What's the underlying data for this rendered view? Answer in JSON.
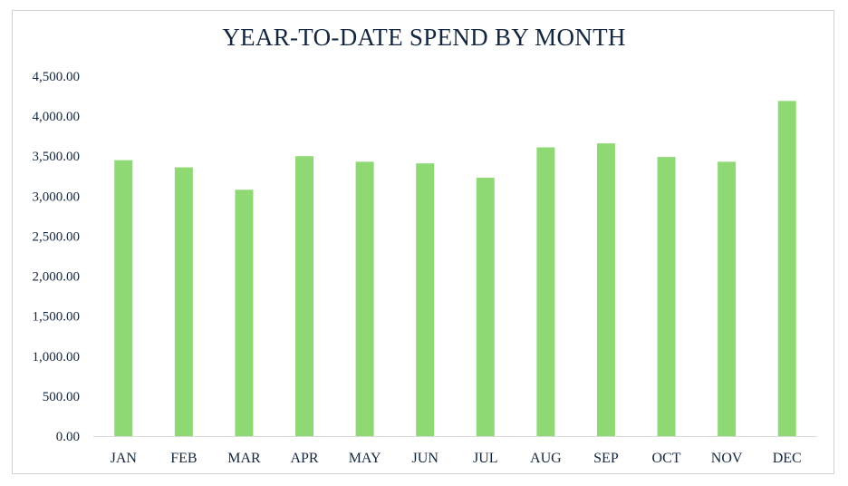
{
  "chart_data": {
    "type": "bar",
    "title": "YEAR-TO-DATE SPEND BY MONTH",
    "categories": [
      "JAN",
      "FEB",
      "MAR",
      "APR",
      "MAY",
      "JUN",
      "JUL",
      "AUG",
      "SEP",
      "OCT",
      "NOV",
      "DEC"
    ],
    "values": [
      3450,
      3360,
      3080,
      3500,
      3430,
      3410,
      3230,
      3610,
      3660,
      3490,
      3430,
      4190
    ],
    "ylim": [
      0,
      4500
    ],
    "yticks": [
      "0.00",
      "500.00",
      "1,000.00",
      "1,500.00",
      "2,000.00",
      "2,500.00",
      "3,000.00",
      "3,500.00",
      "4,000.00",
      "4,500.00"
    ],
    "xlabel": "",
    "ylabel": "",
    "grid": false,
    "bar_color": "#8fd974",
    "text_color": "#13263d",
    "axis_color": "#d9d9d9"
  }
}
